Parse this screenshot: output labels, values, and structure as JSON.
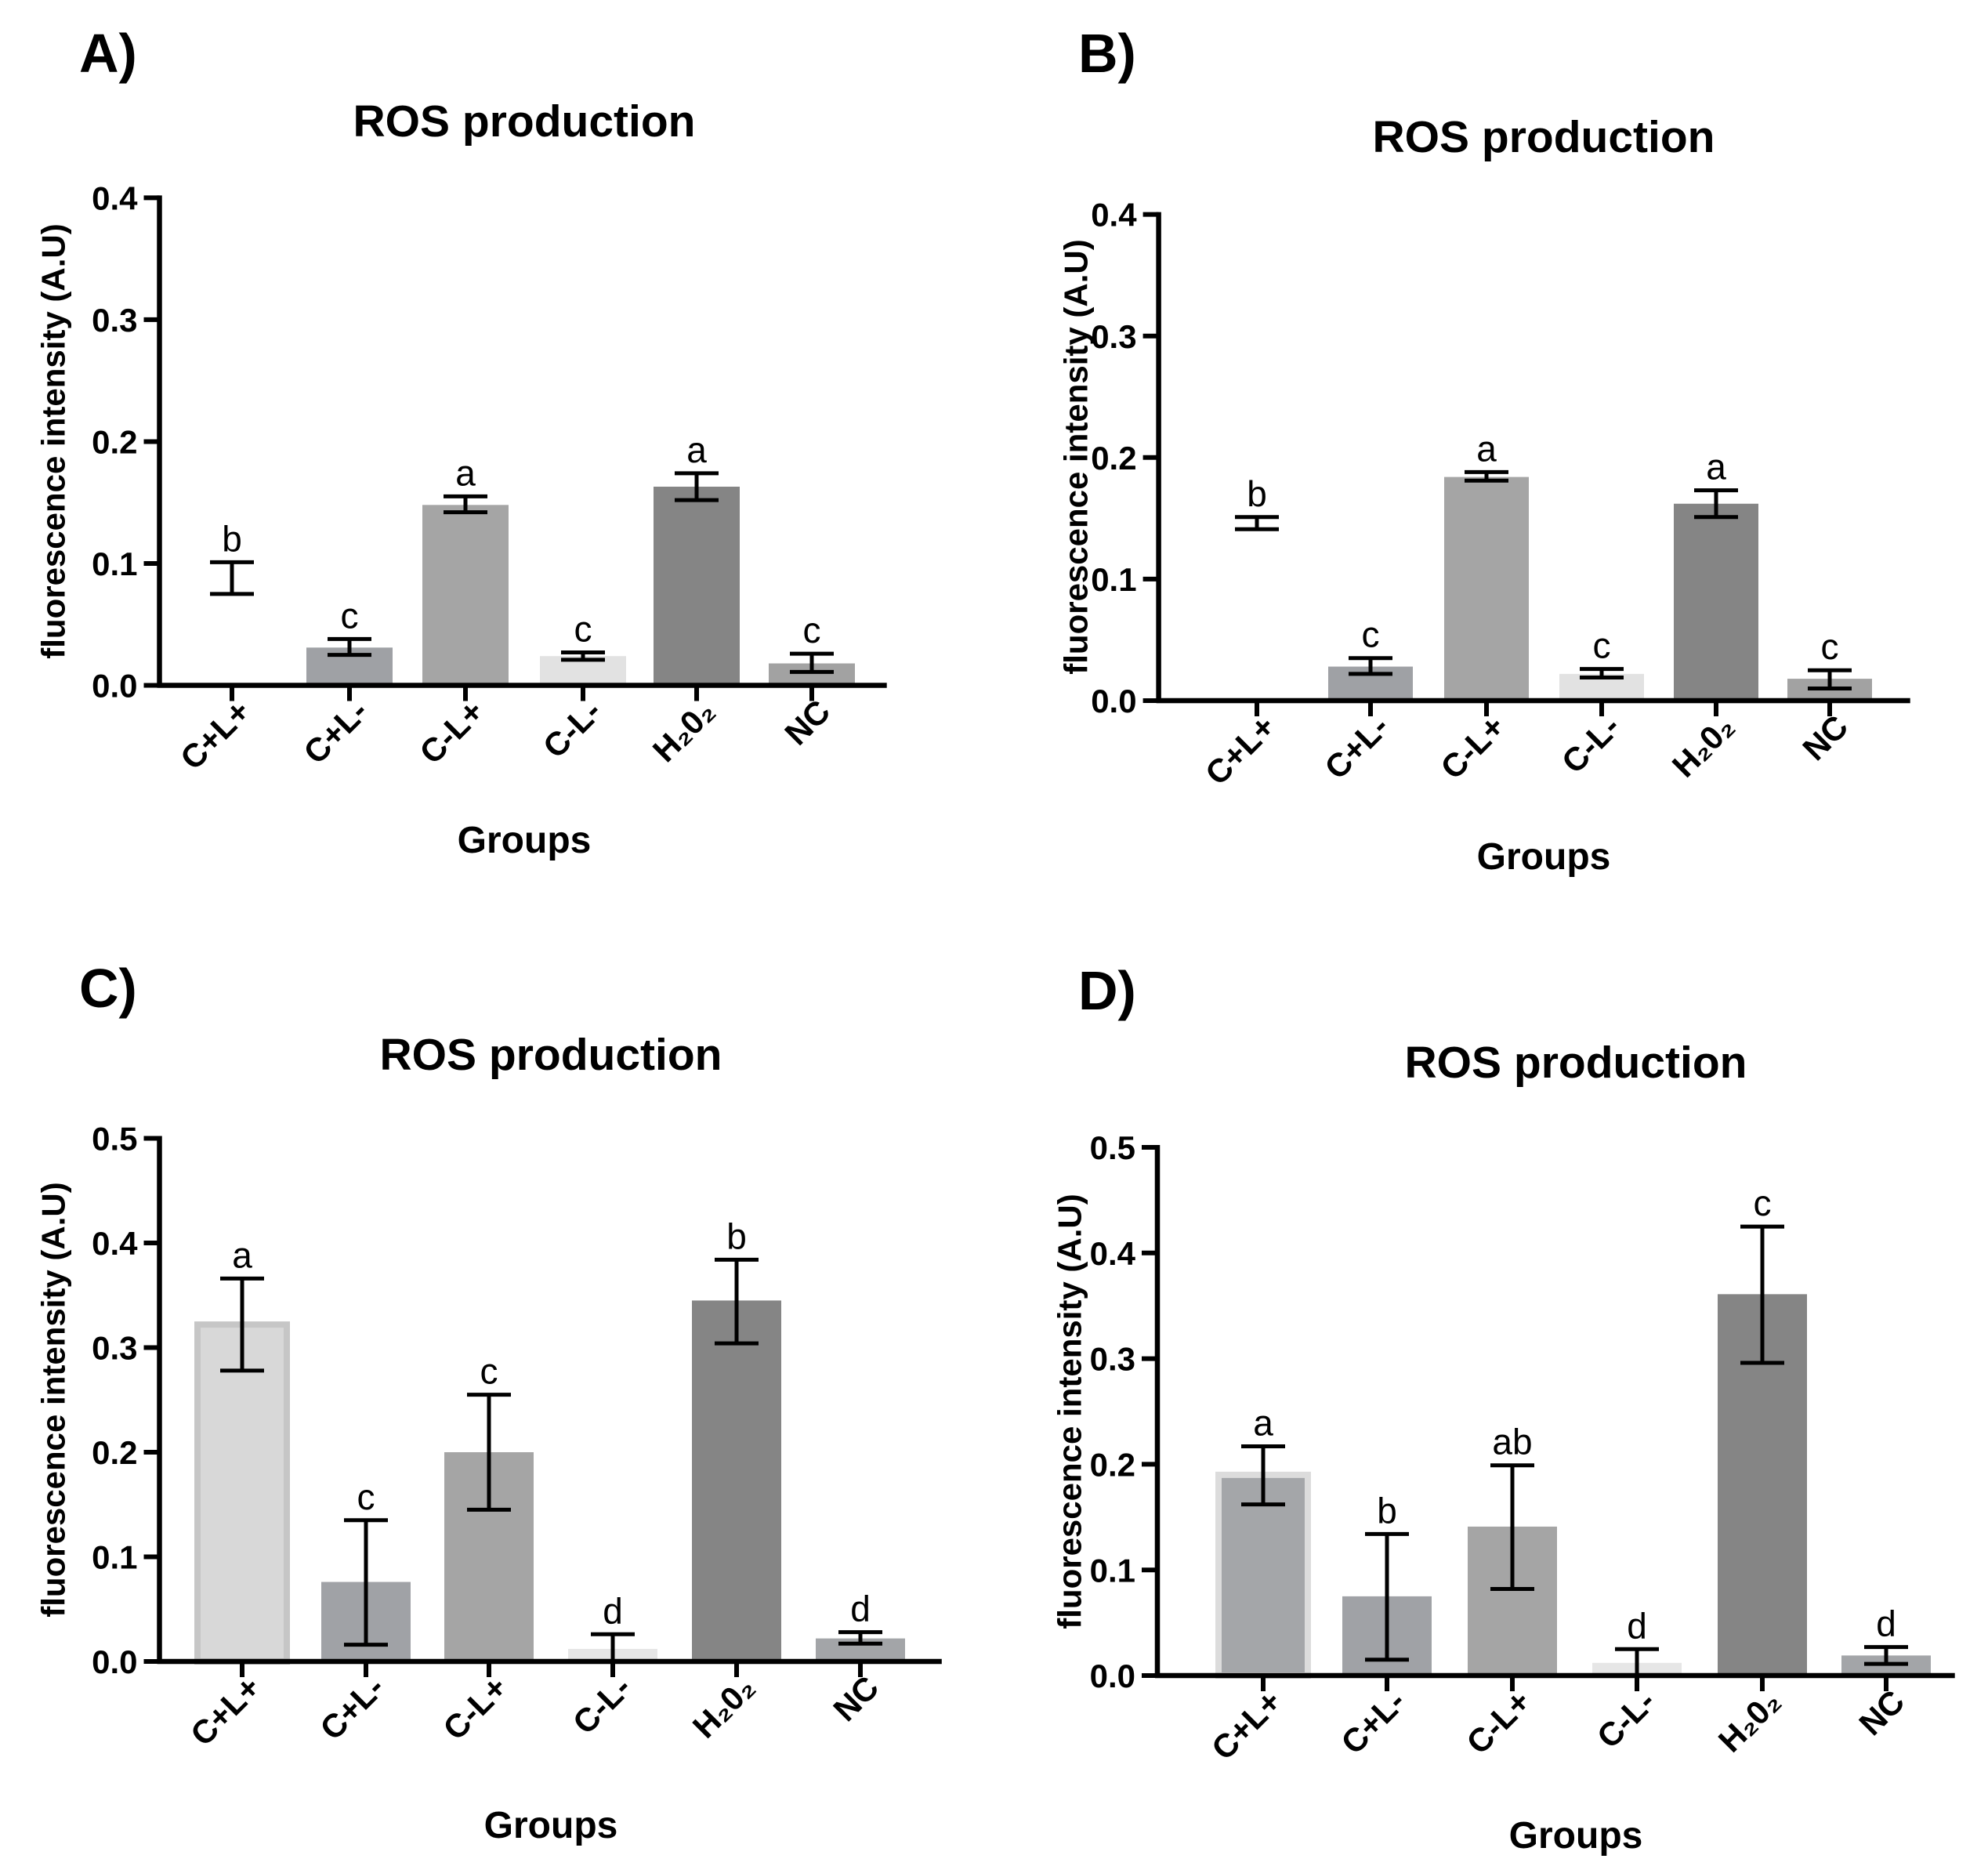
{
  "chart_data": [
    {
      "panel_label": "A)",
      "type": "bar",
      "title": "ROS production",
      "xlabel": "Groups",
      "ylabel": "fluorescence intensity (A.U)",
      "categories": [
        "C+L+",
        "C+L-",
        "C-L+",
        "C-L-",
        "H₂0₂",
        "NC"
      ],
      "values": [
        0.088,
        0.031,
        0.148,
        0.024,
        0.163,
        0.018
      ],
      "error_low": [
        0.075,
        0.025,
        0.142,
        0.021,
        0.152,
        0.011
      ],
      "error_high": [
        0.101,
        0.038,
        0.155,
        0.027,
        0.174,
        0.026
      ],
      "letters": [
        "b",
        "c",
        "a",
        "c",
        "a",
        "c"
      ],
      "ylim": [
        0,
        0.4
      ],
      "yticks": [
        "0.0",
        "0.1",
        "0.2",
        "0.3",
        "0.4"
      ],
      "bar_colors": [
        "#ffffff",
        "#9fa1a5",
        "#a5a5a5",
        "#e2e2e2",
        "#858585",
        "#a2a2a2"
      ],
      "bar_edge_colors": [
        "none",
        "none",
        "none",
        "none",
        "none",
        "none"
      ]
    },
    {
      "panel_label": "B)",
      "type": "bar",
      "title": "ROS production",
      "xlabel": "Groups",
      "ylabel": "fluorescence intensity (A.U)",
      "categories": [
        "C+L+",
        "C+L-",
        "C-L+",
        "C-L-",
        "H₂0₂",
        "NC"
      ],
      "values": [
        0.146,
        0.028,
        0.184,
        0.022,
        0.162,
        0.018
      ],
      "error_low": [
        0.141,
        0.022,
        0.181,
        0.019,
        0.151,
        0.01
      ],
      "error_high": [
        0.151,
        0.035,
        0.188,
        0.026,
        0.173,
        0.025
      ],
      "letters": [
        "b",
        "c",
        "a",
        "c",
        "a",
        "c"
      ],
      "ylim": [
        0,
        0.4
      ],
      "yticks": [
        "0.0",
        "0.1",
        "0.2",
        "0.3",
        "0.4"
      ],
      "bar_colors": [
        "#ffffff",
        "#9fa1a5",
        "#a5a5a5",
        "#e2e2e2",
        "#858585",
        "#a2a2a2"
      ],
      "bar_edge_colors": [
        "none",
        "none",
        "none",
        "none",
        "none",
        "none"
      ]
    },
    {
      "panel_label": "C)",
      "type": "bar",
      "title": "ROS production",
      "xlabel": "Groups",
      "ylabel": "fluorescence intensity (A.U)",
      "categories": [
        "C+L+",
        "C+L-",
        "C-L+",
        "C-L-",
        "H₂0₂",
        "NC"
      ],
      "values": [
        0.322,
        0.076,
        0.2,
        0.012,
        0.345,
        0.022
      ],
      "error_low": [
        0.278,
        0.016,
        0.145,
        0.0,
        0.304,
        0.017
      ],
      "error_high": [
        0.366,
        0.135,
        0.255,
        0.026,
        0.384,
        0.028
      ],
      "letters": [
        "a",
        "c",
        "c",
        "d",
        "b",
        "d"
      ],
      "ylim": [
        0,
        0.5
      ],
      "yticks": [
        "0.0",
        "0.1",
        "0.2",
        "0.3",
        "0.4",
        "0.5"
      ],
      "bar_colors": [
        "#d8d8d8",
        "#a0a2a6",
        "#a5a5a5",
        "#e6e6e6",
        "#858585",
        "#a3a5a8"
      ],
      "bar_edge_colors": [
        "#c6c6c6",
        "none",
        "none",
        "none",
        "none",
        "none"
      ]
    },
    {
      "panel_label": "D)",
      "type": "bar",
      "title": "ROS production",
      "xlabel": "Groups",
      "ylabel": "fluorescence intensity (A.U)",
      "categories": [
        "C+L+",
        "C+L-",
        "C-L+",
        "C-L-",
        "H₂0₂",
        "NC"
      ],
      "values": [
        0.19,
        0.075,
        0.141,
        0.012,
        0.361,
        0.019
      ],
      "error_low": [
        0.162,
        0.015,
        0.082,
        0.0,
        0.296,
        0.011
      ],
      "error_high": [
        0.217,
        0.134,
        0.199,
        0.025,
        0.425,
        0.027
      ],
      "letters": [
        "a",
        "b",
        "ab",
        "d",
        "c",
        "d"
      ],
      "ylim": [
        0,
        0.5
      ],
      "yticks": [
        "0.0",
        "0.1",
        "0.2",
        "0.3",
        "0.4",
        "0.5"
      ],
      "bar_colors": [
        "#a4a6a9",
        "#a0a2a6",
        "#a5a5a5",
        "#e6e6e6",
        "#858585",
        "#a3a5a8"
      ],
      "bar_edge_colors": [
        "#dcdcdc",
        "none",
        "none",
        "none",
        "none",
        "none"
      ]
    }
  ]
}
